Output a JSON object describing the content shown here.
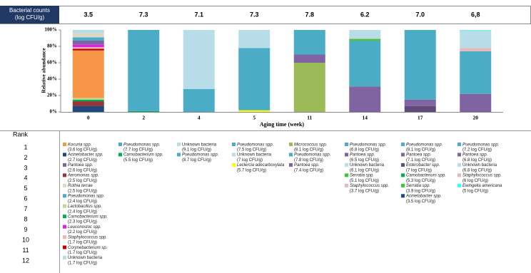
{
  "chart_data": {
    "type": "stacked-bar",
    "counts_label": "Bacterial counts (log CFU/g)",
    "counts": [
      3.5,
      7.3,
      7.1,
      7.3,
      7.8,
      6.2,
      {
        "value": 7,
        "label": "7.0"
      },
      {
        "value": 6.8,
        "label": "6,8"
      }
    ],
    "y_label": "Relative abundance",
    "x_label": "Aging time (week)",
    "categories": [
      "0",
      "2",
      "4",
      "5",
      "11",
      "14",
      "17",
      "20"
    ],
    "ylim": [
      0,
      100
    ],
    "yticks": [
      {
        "value": 0,
        "label": "0%"
      },
      {
        "value": 20,
        "label": "20%"
      },
      {
        "value": 40,
        "label": "40%"
      },
      {
        "value": 60,
        "label": "60%"
      },
      {
        "value": 80,
        "label": "80%"
      },
      {
        "value": 100,
        "label": "100%"
      }
    ],
    "stacks": [
      [
        {
          "color": "#1f497d",
          "value": 7
        },
        {
          "color": "#953735",
          "value": 6
        },
        {
          "color": "#00b050",
          "value": 2
        },
        {
          "color": "#c3d69b",
          "value": 2
        },
        {
          "color": "#f79646",
          "value": 58
        },
        {
          "color": "#c00000",
          "value": 2
        },
        {
          "color": "#e6b9b8",
          "value": 2
        },
        {
          "color": "#e020e0",
          "value": 3
        },
        {
          "color": "#8064a2",
          "value": 5
        },
        {
          "color": "#4bacc6",
          "value": 4
        },
        {
          "color": "#ddd9c3",
          "value": 5
        },
        {
          "color": "#b7dee8",
          "value": 4
        }
      ],
      [
        {
          "color": "#00b050",
          "value": 1
        },
        {
          "color": "#4bacc6",
          "value": 99
        }
      ],
      [
        {
          "color": "#4bacc6",
          "value": 28
        },
        {
          "color": "#b7dee8",
          "value": 72
        }
      ],
      [
        {
          "color": "#ffff00",
          "value": 2
        },
        {
          "color": "#4bacc6",
          "value": 76
        },
        {
          "color": "#b7dee8",
          "value": 22
        }
      ],
      [
        {
          "color": "#9bbb59",
          "value": 60
        },
        {
          "color": "#8064a2",
          "value": 10
        },
        {
          "color": "#4bacc6",
          "value": 30
        }
      ],
      [
        {
          "color": "#8064a2",
          "value": 31
        },
        {
          "color": "#4bacc6",
          "value": 56
        },
        {
          "color": "#33cc33",
          "value": 2
        },
        {
          "color": "#e6b9b8",
          "value": 1
        },
        {
          "color": "#b7dee8",
          "value": 10
        }
      ],
      [
        {
          "color": "#604a7b",
          "value": 7
        },
        {
          "color": "#8064a2",
          "value": 8
        },
        {
          "color": "#4bacc6",
          "value": 84.5
        },
        {
          "color": "#00b050",
          "value": 0.3
        },
        {
          "color": "#33cc33",
          "value": 0.1
        },
        {
          "color": "#1f497d",
          "value": 0.1
        }
      ],
      [
        {
          "color": "#8064a2",
          "value": 22
        },
        {
          "color": "#4bacc6",
          "value": 52
        },
        {
          "color": "#e6b9b8",
          "value": 4
        },
        {
          "color": "#b7dee8",
          "value": 21.5
        },
        {
          "color": "#33ffff",
          "value": 0.5
        }
      ]
    ],
    "rank_label": "Rank",
    "ranks": [
      1,
      2,
      3,
      4,
      5,
      6,
      7,
      8,
      9,
      10,
      11,
      12
    ],
    "legend": [
      [
        {
          "name": "Kocuria spp.",
          "color": "#f79646",
          "count": "(3.6 log CFU/g)"
        },
        {
          "name": "Acinetobacter spp.",
          "color": "#1f497d",
          "count": "(2.7 log CFU/g)"
        },
        {
          "name": "Pantoea spp.",
          "color": "#8064a2",
          "count": "(2.6 log CFU/g)"
        },
        {
          "name": "Aeromonas spp.",
          "color": "#953735",
          "count": "(2.5 log CFU/g)"
        },
        {
          "name": "Rothia terrae",
          "color": "#ddd9c3",
          "count": "(2.5 log CFU/g)"
        },
        {
          "name": "Pseudomonas spp.",
          "color": "#4bacc6",
          "count": "(2.4 log CFU/g)"
        },
        {
          "name": "Lactobacillus spp.",
          "color": "#c3d69b",
          "count": "(2.4 log CFU/g)"
        },
        {
          "name": "Carnobacterium spp.",
          "color": "#00b050",
          "count": "(2.3 log CFU/g)"
        },
        {
          "name": "Leuconostoc spp.",
          "color": "#e020e0",
          "count": "(2.2 log CFU/g)"
        },
        {
          "name": "Staphylococcus spp.",
          "color": "#e6b9b8",
          "count": "(1.7 log CFU/g)"
        },
        {
          "name": "Corynebacterium sp.",
          "color": "#c00000",
          "count": "(1.7 log CFU/g)"
        },
        {
          "name": "Unknown bacteria",
          "color": "#b7dee8",
          "count": "(1.7 log CFU/g)"
        }
      ],
      [
        {
          "name": "Pseudomonas spp.",
          "color": "#4bacc6",
          "count": "(7.7 log CFU/g)"
        },
        {
          "name": "Carnobacterium spp.",
          "color": "#00b050",
          "count": "(5.5 log CFU/g)"
        }
      ],
      [
        {
          "name": "Unknown bacteria",
          "color": "#b7dee8",
          "count": "(9.1 log CFU/g)"
        },
        {
          "name": "Pseudomonas spp.",
          "color": "#4bacc6",
          "count": "(8.7 log CFU/g)"
        }
      ],
      [
        {
          "name": "Pseudomonas spp.",
          "color": "#4bacc6",
          "count": "(7.5 log CFU/g)"
        },
        {
          "name": "Unknown bacteria",
          "color": "#b7dee8",
          "count": "(7 log CFU/g)"
        },
        {
          "name": "Leclercia adecarboxylata",
          "color": "#ffff00",
          "count": "(5.7 log CFU/g)"
        }
      ],
      [
        {
          "name": "Micrococcus spp.",
          "color": "#9bbb59",
          "count": "(8.1 log CFU/g)"
        },
        {
          "name": "Pseudomonas spp.",
          "color": "#4bacc6",
          "count": "(7.8 log CFU/g)"
        },
        {
          "name": "Pantoea spp.",
          "color": "#8064a2",
          "count": "(7.4 log CFU/g)"
        }
      ],
      [
        {
          "name": "Pseudomonas spp.",
          "color": "#4bacc6",
          "count": "(6.8 log CFU/g)"
        },
        {
          "name": "Pantoea spp.",
          "color": "#8064a2",
          "count": "(6.5 log CFU/g)"
        },
        {
          "name": "Unknown bacteria",
          "color": "#b7dee8",
          "count": "(6.1 log CFU/g)"
        },
        {
          "name": "Serratia spp.",
          "color": "#33cc33",
          "count": "(5.1 log CFU/g)"
        },
        {
          "name": "Staphylococcus spp.",
          "color": "#e6b9b8",
          "count": "(3.7 log CFU/g)"
        }
      ],
      [
        {
          "name": "Pseudomonas spp.",
          "color": "#4bacc6",
          "count": "(8.1 log CFU/g)"
        },
        {
          "name": "Pantoea spp.",
          "color": "#8064a2",
          "count": "(7.1 log CFU/g)"
        },
        {
          "name": "Enterobacter spp.",
          "color": "#604a7b",
          "count": "(7 log CFU/g)"
        },
        {
          "name": "Carnobacterium spp.",
          "color": "#00b050",
          "count": "(5.3 log CFU/g)"
        },
        {
          "name": "Serratia spp.",
          "color": "#33cc33",
          "count": "(3.9 log CFU/g)"
        },
        {
          "name": "Acinetobacter spp.",
          "color": "#1f497d",
          "count": "(3.5 log CFU/g)"
        }
      ],
      [
        {
          "name": "Pseudomonas spp.",
          "color": "#4bacc6",
          "count": "(7.2 log CFU/g)"
        },
        {
          "name": "Pantoea spp.",
          "color": "#8064a2",
          "count": "(6.8 log CFU/g)"
        },
        {
          "name": "Unknown bacteria",
          "color": "#b7dee8",
          "count": "(6.8 log CFU/g)"
        },
        {
          "name": "Staphylococcus spp.",
          "color": "#e6b9b8",
          "count": "(6 log CFU/g)"
        },
        {
          "name": "Ewingella americana",
          "color": "#33ffff",
          "count": "(5 log CFU/g)"
        }
      ]
    ]
  }
}
